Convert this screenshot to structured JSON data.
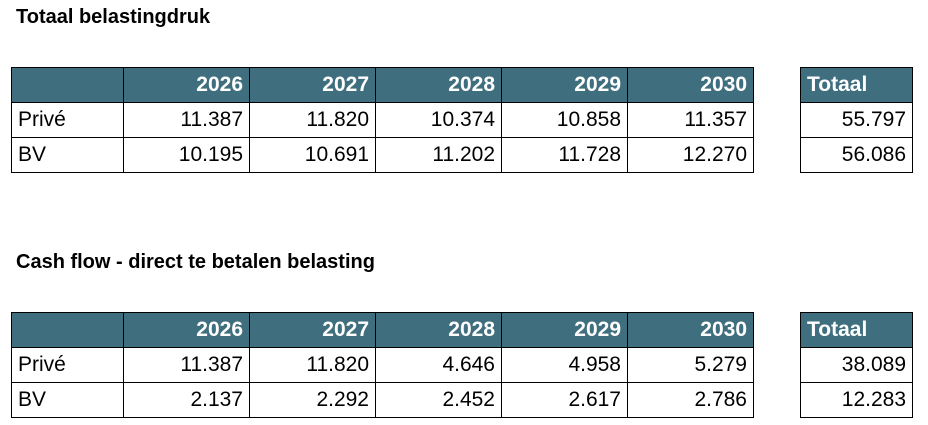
{
  "sections": [
    {
      "title": "Totaal belastingdruk",
      "years": [
        "2026",
        "2027",
        "2028",
        "2029",
        "2030"
      ],
      "total_header": "Totaal",
      "rows": [
        {
          "label": "Privé",
          "values": [
            "11.387",
            "11.820",
            "10.374",
            "10.858",
            "11.357"
          ],
          "total": "55.797"
        },
        {
          "label": "BV",
          "values": [
            "10.195",
            "10.691",
            "11.202",
            "11.728",
            "12.270"
          ],
          "total": "56.086"
        }
      ]
    },
    {
      "title": "Cash flow - direct te betalen belasting",
      "years": [
        "2026",
        "2027",
        "2028",
        "2029",
        "2030"
      ],
      "total_header": "Totaal",
      "rows": [
        {
          "label": "Privé",
          "values": [
            "11.387",
            "11.820",
            "4.646",
            "4.958",
            "5.279"
          ],
          "total": "38.089"
        },
        {
          "label": "BV",
          "values": [
            "2.137",
            "2.292",
            "2.452",
            "2.617",
            "2.786"
          ],
          "total": "12.283"
        }
      ]
    }
  ],
  "colors": {
    "header_bg": "#3f6e7e",
    "header_text": "#ffffff"
  }
}
